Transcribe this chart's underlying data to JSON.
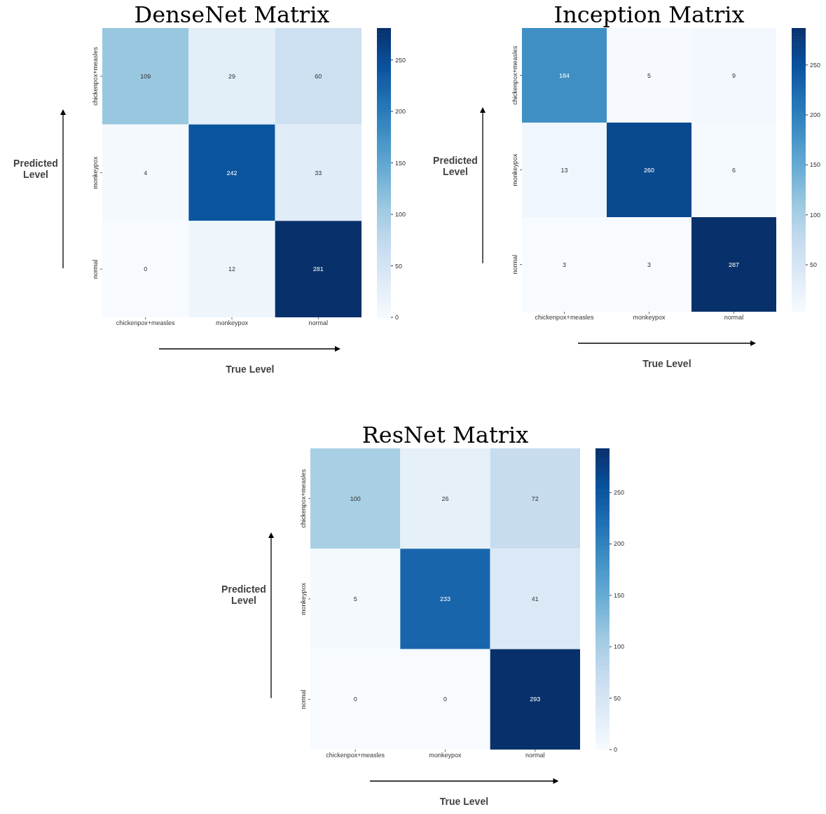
{
  "chart_data": [
    {
      "type": "heatmap",
      "title": "DenseNet Matrix",
      "xlabel": "True Level",
      "ylabel": "Predicted Level",
      "categories": [
        "chickenpox+measles",
        "monkeypox",
        "normal"
      ],
      "y_categories": [
        "chickenpox+measles",
        "monkeypox",
        "normal"
      ],
      "cells": [
        [
          109,
          29,
          60
        ],
        [
          4,
          242,
          33
        ],
        [
          0,
          12,
          281
        ]
      ],
      "clim": [
        0,
        281
      ],
      "cticks": [
        0,
        50,
        100,
        150,
        200,
        250
      ],
      "data_labels": true
    },
    {
      "type": "heatmap",
      "title": "Inception Matrix",
      "xlabel": "True Level",
      "ylabel": "Predicted Level",
      "categories": [
        "chickenpox+measles",
        "monkeypox",
        "normal"
      ],
      "y_categories": [
        "chickenpox+measles",
        "monkeypox",
        "normal"
      ],
      "cells": [
        [
          184,
          5,
          9
        ],
        [
          13,
          260,
          6
        ],
        [
          3,
          3,
          287
        ]
      ],
      "clim": [
        3,
        287
      ],
      "cticks": [
        50,
        100,
        150,
        200,
        250
      ],
      "data_labels": true
    },
    {
      "type": "heatmap",
      "title": "ResNet Matrix",
      "xlabel": "True Level",
      "ylabel": "Predicted Level",
      "categories": [
        "chickenpox+measles",
        "monkeypox",
        "normal"
      ],
      "y_categories": [
        "chickenpox+measles",
        "monkeypox",
        "normal"
      ],
      "cells": [
        [
          100,
          26,
          72
        ],
        [
          5,
          233,
          41
        ],
        [
          0,
          0,
          293
        ]
      ],
      "clim": [
        0,
        293
      ],
      "cticks": [
        0,
        50,
        100,
        150,
        200,
        250
      ],
      "data_labels": true
    }
  ]
}
